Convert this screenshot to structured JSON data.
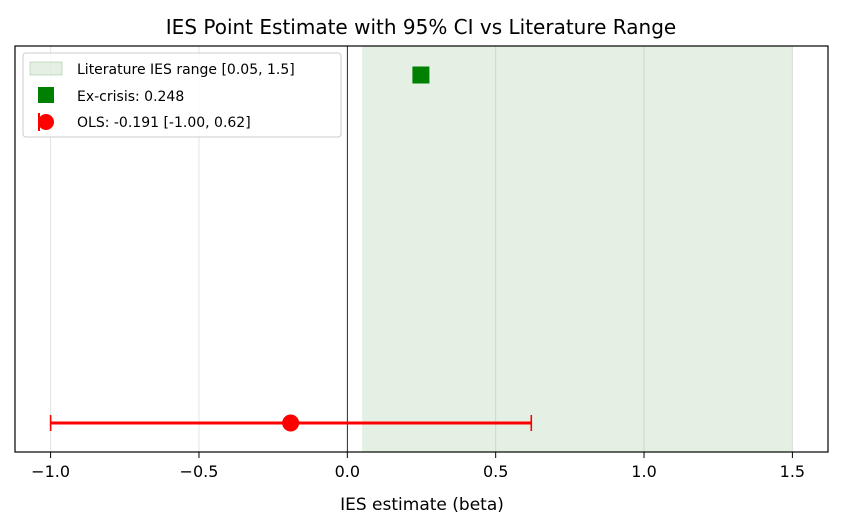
{
  "chart_data": {
    "type": "scatter",
    "title": "IES Point Estimate with 95% CI vs Literature Range",
    "xlabel": "IES estimate (beta)",
    "ylabel": "",
    "xlim": [
      -1.12,
      1.62
    ],
    "ylim": [
      -0.1,
      1.3
    ],
    "xticks": [
      -1.0,
      -0.5,
      0.0,
      0.5,
      1.0,
      1.5
    ],
    "xtick_labels": [
      "−1.0",
      "−0.5",
      "0.0",
      "0.5",
      "1.0",
      "1.5"
    ],
    "grid": "x",
    "legend_placement": "top-left",
    "reference_line_x": 0,
    "literature_range": {
      "label": "Literature IES range [0.05, 1.5]",
      "x0": 0.05,
      "x1": 1.5,
      "color": "#2e8b2e"
    },
    "ex_crisis": {
      "label": "Ex-crisis: 0.248",
      "x": 0.248,
      "y": 1.2,
      "color": "#008000",
      "marker": "square"
    },
    "ols": {
      "label": "OLS: -0.191 [-1.00, 0.62]",
      "x": -0.191,
      "ci_low": -1.0,
      "ci_high": 0.62,
      "y": 0,
      "color": "#ff0000",
      "marker": "circle"
    }
  }
}
